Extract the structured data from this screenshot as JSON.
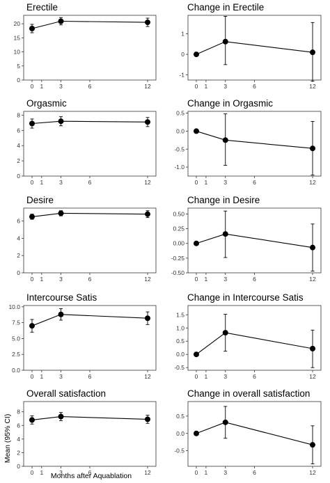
{
  "figure": {
    "ylabel": "Mean (95% CI)",
    "xlabel": "Months after Aquablation"
  },
  "chart_data": [
    {
      "type": "line",
      "title": "Erectile",
      "x": [
        0,
        3,
        12
      ],
      "x_ticks": [
        0,
        1,
        3,
        6,
        12
      ],
      "ylim": [
        0,
        23
      ],
      "y_ticks": [
        0,
        5,
        10,
        15,
        20
      ],
      "y_tick_labels": [
        "0",
        "5",
        "10",
        "15",
        "20"
      ],
      "values": [
        18.3,
        20.9,
        20.5
      ],
      "ci_low": [
        16.8,
        19.6,
        19.0
      ],
      "ci_high": [
        19.8,
        22.2,
        22.0
      ]
    },
    {
      "type": "line",
      "title": "Change in Erectile",
      "x": [
        0,
        3,
        12
      ],
      "x_ticks": [
        0,
        1,
        3,
        6,
        12
      ],
      "ylim": [
        -1.25,
        1.9
      ],
      "y_ticks": [
        -1,
        0,
        1
      ],
      "y_tick_labels": [
        "-1",
        "0",
        "1"
      ],
      "values": [
        0,
        0.62,
        0.1
      ],
      "ci_low": [
        0,
        -0.5,
        -1.3
      ],
      "ci_high": [
        0,
        1.85,
        1.55
      ]
    },
    {
      "type": "line",
      "title": "Orgasmic",
      "x": [
        0,
        3,
        12
      ],
      "x_ticks": [
        0,
        1,
        3,
        6,
        12
      ],
      "ylim": [
        0,
        8.5
      ],
      "y_ticks": [
        0,
        2,
        4,
        6,
        8
      ],
      "y_tick_labels": [
        "0",
        "2",
        "4",
        "6",
        "8"
      ],
      "values": [
        6.9,
        7.2,
        7.1
      ],
      "ci_low": [
        6.3,
        6.6,
        6.5
      ],
      "ci_high": [
        7.5,
        7.8,
        7.7
      ]
    },
    {
      "type": "line",
      "title": "Change in Orgasmic",
      "x": [
        0,
        3,
        12
      ],
      "x_ticks": [
        0,
        1,
        3,
        6,
        12
      ],
      "ylim": [
        -1.25,
        0.55
      ],
      "y_ticks": [
        -1.0,
        -0.5,
        0.0,
        0.5
      ],
      "y_tick_labels": [
        "-1.0",
        "-0.5",
        "0.0",
        "0.5"
      ],
      "values": [
        0,
        -0.25,
        -0.48
      ],
      "ci_low": [
        0,
        -0.95,
        -1.22
      ],
      "ci_high": [
        0,
        0.48,
        0.27
      ]
    },
    {
      "type": "line",
      "title": "Desire",
      "x": [
        0,
        3,
        12
      ],
      "x_ticks": [
        0,
        1,
        3,
        6,
        12
      ],
      "ylim": [
        0,
        7.5
      ],
      "y_ticks": [
        0,
        2,
        4,
        6
      ],
      "y_tick_labels": [
        "0",
        "2",
        "4",
        "6"
      ],
      "values": [
        6.5,
        6.9,
        6.8
      ],
      "ci_low": [
        6.2,
        6.6,
        6.4
      ],
      "ci_high": [
        6.8,
        7.2,
        7.2
      ]
    },
    {
      "type": "line",
      "title": "Change in Desire",
      "x": [
        0,
        3,
        12
      ],
      "x_ticks": [
        0,
        1,
        3,
        6,
        12
      ],
      "ylim": [
        -0.5,
        0.6
      ],
      "y_ticks": [
        -0.5,
        -0.25,
        0.0,
        0.25,
        0.5
      ],
      "y_tick_labels": [
        "-0.50",
        "-0.25",
        "0.00",
        "0.25",
        "0.50"
      ],
      "values": [
        0,
        0.16,
        -0.07
      ],
      "ci_low": [
        0,
        -0.24,
        -0.47
      ],
      "ci_high": [
        0,
        0.55,
        0.33
      ]
    },
    {
      "type": "line",
      "title": "Intercourse Satis",
      "x": [
        0,
        3,
        12
      ],
      "x_ticks": [
        0,
        1,
        3,
        6,
        12
      ],
      "ylim": [
        0,
        10.2
      ],
      "y_ticks": [
        0,
        2.5,
        5,
        7.5,
        10
      ],
      "y_tick_labels": [
        "0.0",
        "2.5",
        "5.0",
        "7.5",
        "10.0"
      ],
      "values": [
        7.0,
        8.8,
        8.2
      ],
      "ci_low": [
        6.0,
        7.9,
        7.2
      ],
      "ci_high": [
        8.0,
        9.7,
        9.2
      ]
    },
    {
      "type": "line",
      "title": "Change in Intercourse Satis",
      "x": [
        0,
        3,
        12
      ],
      "x_ticks": [
        0,
        1,
        3,
        6,
        12
      ],
      "ylim": [
        -0.6,
        1.85
      ],
      "y_ticks": [
        -0.5,
        0,
        0.5,
        1,
        1.5
      ],
      "y_tick_labels": [
        "-0.5",
        "0.0",
        "0.5",
        "1.0",
        "1.5"
      ],
      "values": [
        0,
        0.82,
        0.22
      ],
      "ci_low": [
        0,
        0.12,
        -0.5
      ],
      "ci_high": [
        0,
        1.52,
        0.92
      ]
    },
    {
      "type": "line",
      "title": "Overall satisfaction",
      "x": [
        0,
        3,
        12
      ],
      "x_ticks": [
        0,
        1,
        3,
        6,
        12
      ],
      "ylim": [
        0,
        9.5
      ],
      "y_ticks": [
        0,
        2,
        4,
        6,
        8
      ],
      "y_tick_labels": [
        "0",
        "2",
        "4",
        "6",
        "8"
      ],
      "values": [
        6.8,
        7.3,
        6.9
      ],
      "ci_low": [
        6.2,
        6.7,
        6.3
      ],
      "ci_high": [
        7.4,
        7.9,
        7.5
      ]
    },
    {
      "type": "line",
      "title": "Change in overall satisfaction",
      "x": [
        0,
        3,
        12
      ],
      "x_ticks": [
        0,
        1,
        3,
        6,
        12
      ],
      "ylim": [
        -0.95,
        0.92
      ],
      "y_ticks": [
        -0.5,
        0,
        0.5
      ],
      "y_tick_labels": [
        "-0.5",
        "0.0",
        "0.5"
      ],
      "values": [
        0,
        0.32,
        -0.33
      ],
      "ci_low": [
        0,
        -0.14,
        -0.88
      ],
      "ci_high": [
        0,
        0.78,
        0.22
      ]
    }
  ]
}
